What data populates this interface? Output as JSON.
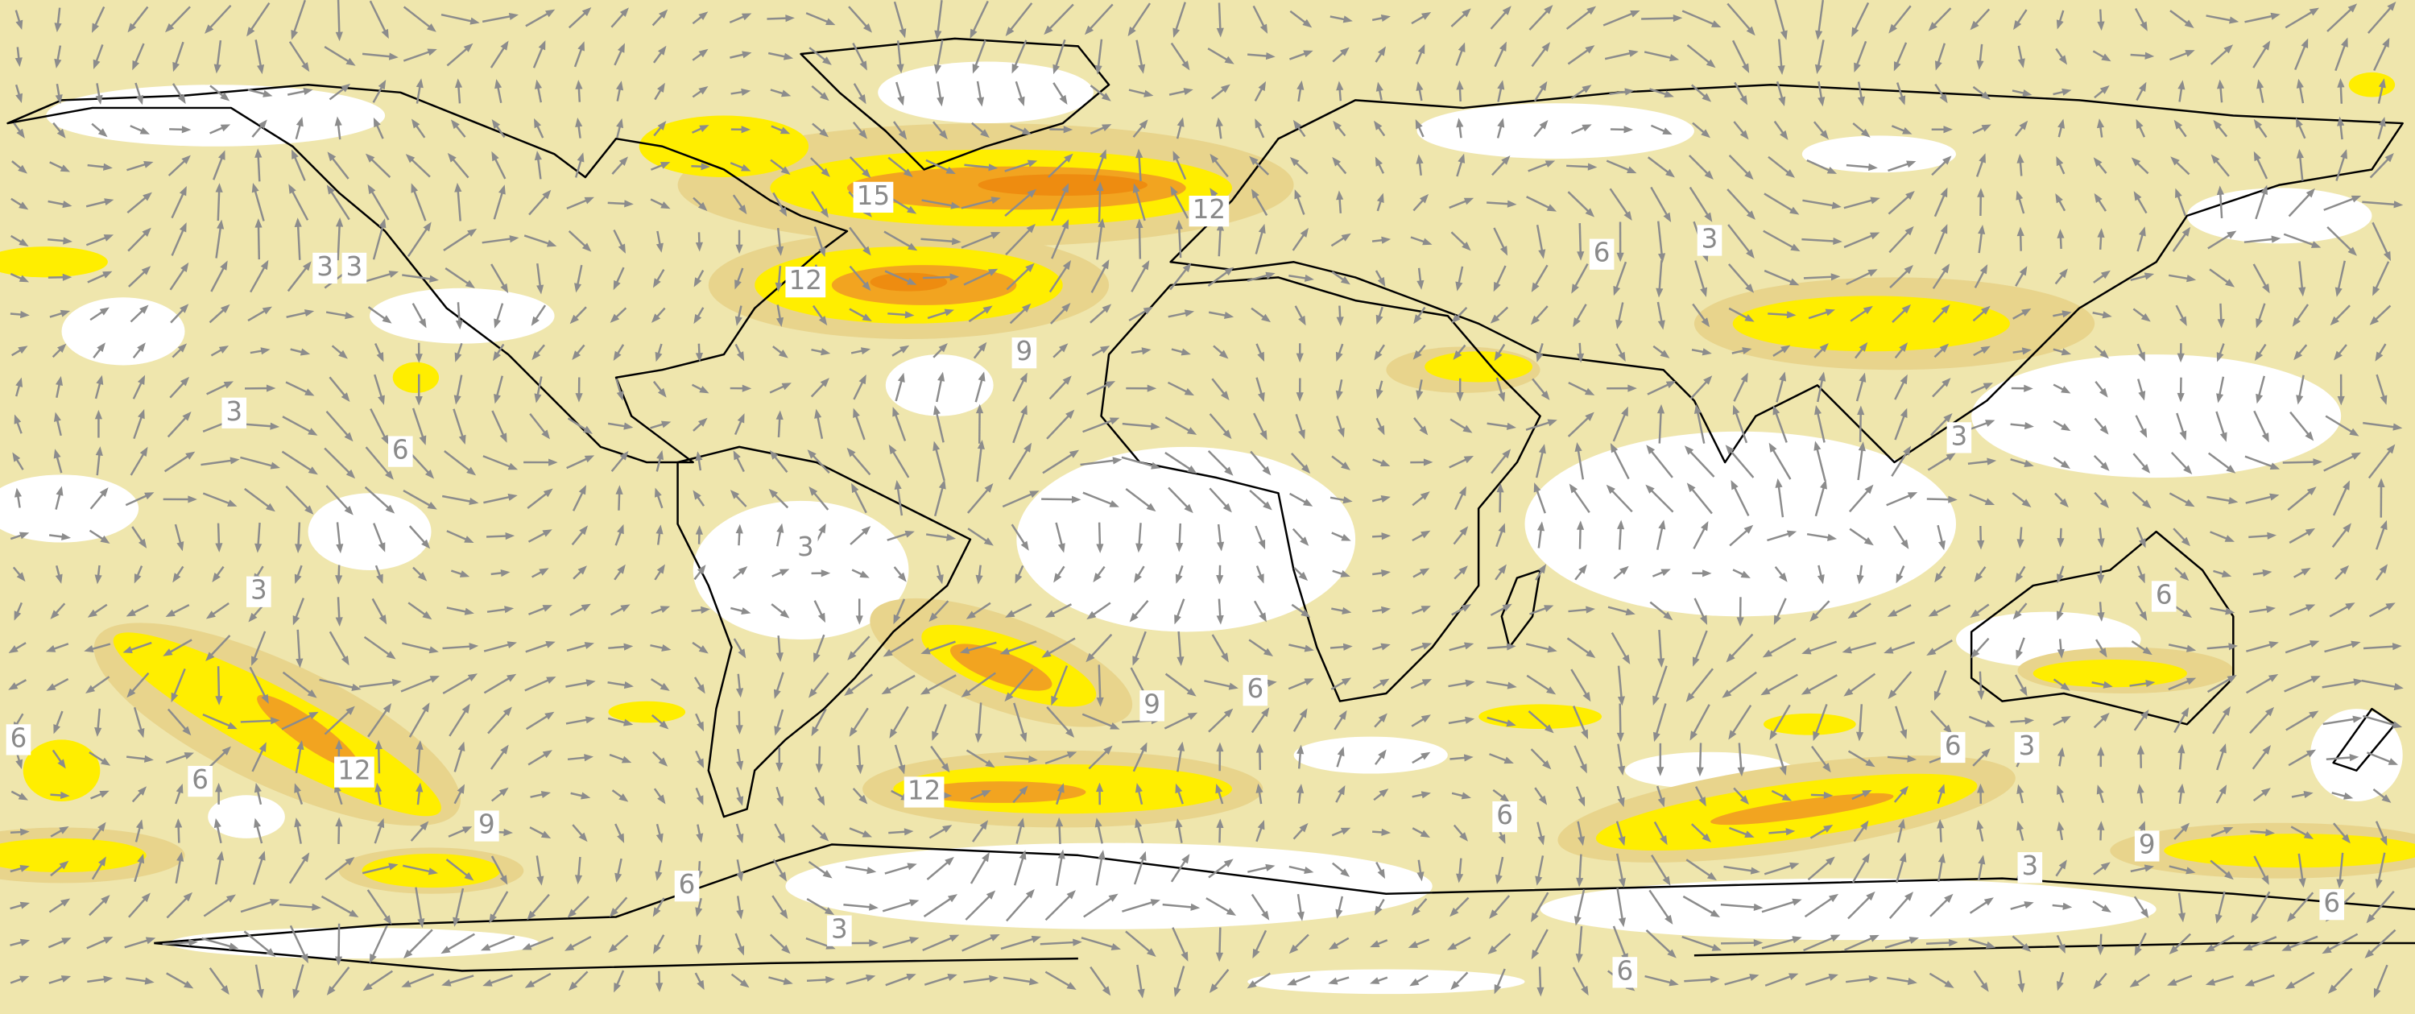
{
  "contour_labels": [
    15,
    12,
    12,
    9,
    3,
    3,
    6,
    3,
    3,
    6,
    3,
    3,
    3,
    6,
    6,
    9,
    6,
    6,
    12,
    9,
    12,
    6,
    3,
    6,
    9,
    3,
    6,
    3,
    6,
    6
  ]
}
